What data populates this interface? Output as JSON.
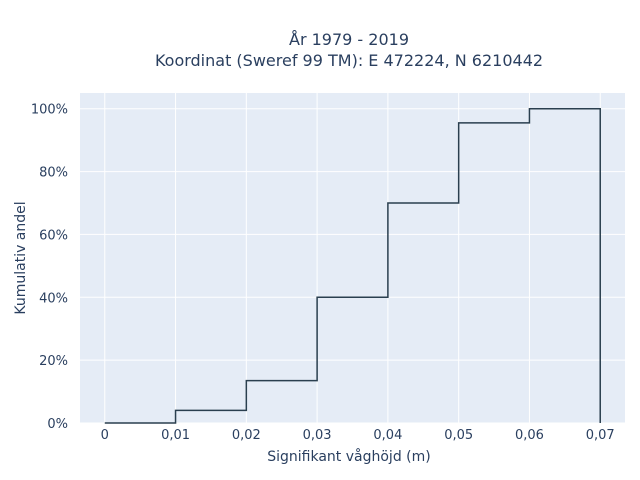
{
  "chart_data": {
    "type": "line",
    "line_shape": "step",
    "title": [
      "År 1979 - 2019",
      "Koordinat (Sweref 99 TM): E 472224, N 6210442"
    ],
    "xlabel": "Signifikant våghöjd (m)",
    "ylabel": "Kumulativ andel",
    "xlim": [
      -0.0035,
      0.0735
    ],
    "ylim": [
      0,
      1.05
    ],
    "x_ticks": [
      0,
      0.01,
      0.02,
      0.03,
      0.04,
      0.05,
      0.06,
      0.07
    ],
    "x_tick_labels": [
      "0",
      "0,01",
      "0,02",
      "0,03",
      "0,04",
      "0,05",
      "0,06",
      "0,07"
    ],
    "y_ticks": [
      0,
      0.2,
      0.4,
      0.6,
      0.8,
      1.0
    ],
    "y_tick_labels": [
      "0%",
      "20%",
      "40%",
      "60%",
      "80%",
      "100%"
    ],
    "grid": true,
    "series": [
      {
        "x": [
          0,
          0.01,
          0.02,
          0.03,
          0.04,
          0.05,
          0.06,
          0.07
        ],
        "y": [
          0,
          0.04,
          0.135,
          0.4,
          0.7,
          0.955,
          1.0,
          1.0
        ],
        "color": "#2a3f4f"
      }
    ],
    "drop_to_zero_at_end": true,
    "plot_bg": "#e5ecf6",
    "grid_color": "#ffffff",
    "text_color": "#2a3f5f"
  }
}
